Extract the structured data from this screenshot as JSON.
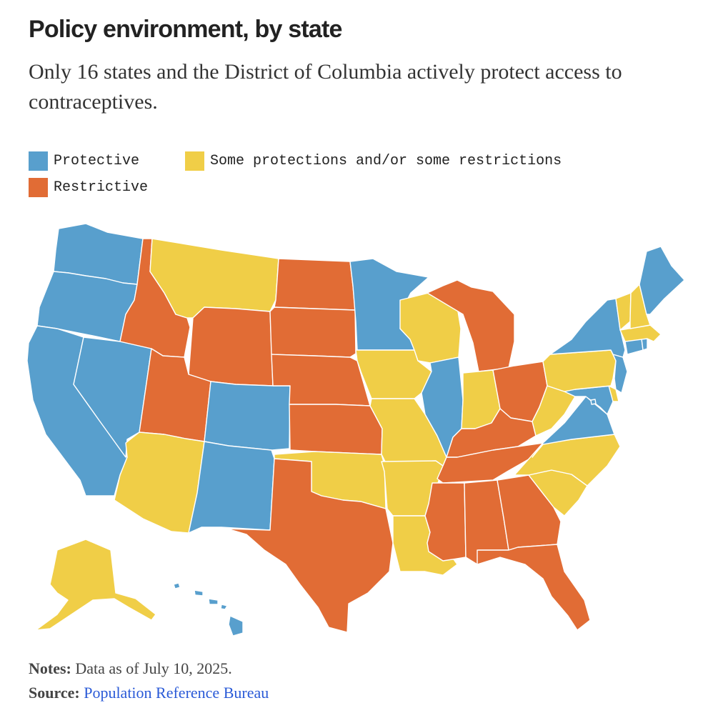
{
  "title": "Policy environment, by state",
  "subtitle": "Only 16 states and the District of Columbia actively protect access to contraceptives.",
  "legend": {
    "protective": "Protective",
    "some": "Some protections and/or some restrictions",
    "restrictive": "Restrictive"
  },
  "colors": {
    "protective": "#589fcd",
    "some": "#f0ce47",
    "restrictive": "#e16c35"
  },
  "notes": {
    "label": "Notes:",
    "text": "Data as of July 10, 2025."
  },
  "source": {
    "label": "Source:",
    "text": "Population Reference Bureau"
  },
  "states": [
    {
      "id": "WA",
      "category": "protective"
    },
    {
      "id": "OR",
      "category": "protective"
    },
    {
      "id": "CA",
      "category": "protective"
    },
    {
      "id": "NV",
      "category": "protective"
    },
    {
      "id": "ID",
      "category": "restrictive"
    },
    {
      "id": "MT",
      "category": "some"
    },
    {
      "id": "WY",
      "category": "restrictive"
    },
    {
      "id": "UT",
      "category": "restrictive"
    },
    {
      "id": "AZ",
      "category": "some"
    },
    {
      "id": "CO",
      "category": "protective"
    },
    {
      "id": "NM",
      "category": "protective"
    },
    {
      "id": "ND",
      "category": "restrictive"
    },
    {
      "id": "SD",
      "category": "restrictive"
    },
    {
      "id": "NE",
      "category": "restrictive"
    },
    {
      "id": "KS",
      "category": "restrictive"
    },
    {
      "id": "OK",
      "category": "some"
    },
    {
      "id": "TX",
      "category": "restrictive"
    },
    {
      "id": "MN",
      "category": "protective"
    },
    {
      "id": "IA",
      "category": "some"
    },
    {
      "id": "MO",
      "category": "some"
    },
    {
      "id": "AR",
      "category": "some"
    },
    {
      "id": "LA",
      "category": "some"
    },
    {
      "id": "WI",
      "category": "some"
    },
    {
      "id": "IL",
      "category": "protective"
    },
    {
      "id": "MI",
      "category": "restrictive"
    },
    {
      "id": "IN",
      "category": "some"
    },
    {
      "id": "OH",
      "category": "restrictive"
    },
    {
      "id": "KY",
      "category": "restrictive"
    },
    {
      "id": "TN",
      "category": "restrictive"
    },
    {
      "id": "MS",
      "category": "restrictive"
    },
    {
      "id": "AL",
      "category": "restrictive"
    },
    {
      "id": "GA",
      "category": "restrictive"
    },
    {
      "id": "FL",
      "category": "restrictive"
    },
    {
      "id": "SC",
      "category": "some"
    },
    {
      "id": "NC",
      "category": "some"
    },
    {
      "id": "VA",
      "category": "protective"
    },
    {
      "id": "WV",
      "category": "some"
    },
    {
      "id": "MD",
      "category": "protective"
    },
    {
      "id": "DE",
      "category": "some"
    },
    {
      "id": "DC",
      "category": "protective"
    },
    {
      "id": "PA",
      "category": "some"
    },
    {
      "id": "NJ",
      "category": "protective"
    },
    {
      "id": "NY",
      "category": "protective"
    },
    {
      "id": "CT",
      "category": "protective"
    },
    {
      "id": "RI",
      "category": "protective"
    },
    {
      "id": "MA",
      "category": "some"
    },
    {
      "id": "VT",
      "category": "some"
    },
    {
      "id": "NH",
      "category": "some"
    },
    {
      "id": "ME",
      "category": "protective"
    },
    {
      "id": "AK",
      "category": "some"
    },
    {
      "id": "HI",
      "category": "protective"
    }
  ]
}
